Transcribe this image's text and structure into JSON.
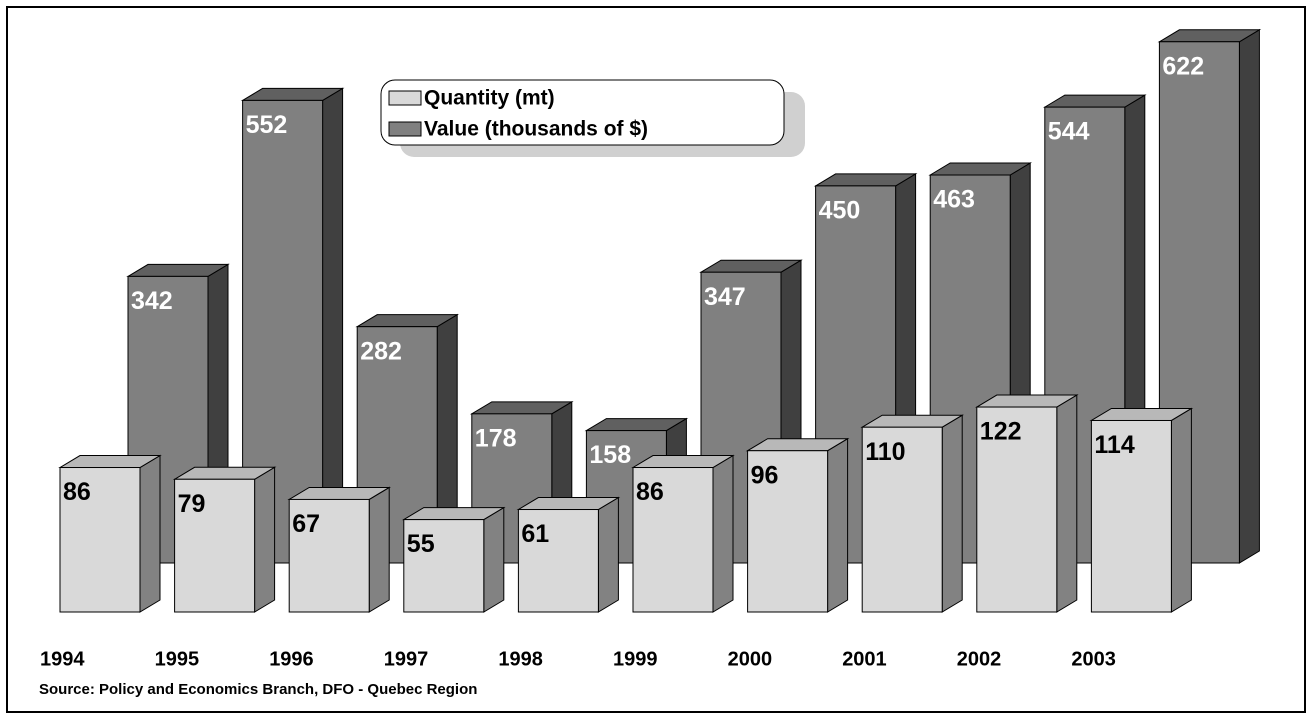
{
  "chart_data": {
    "type": "bar3d",
    "categories": [
      "1994",
      "1995",
      "1996",
      "1997",
      "1998",
      "1999",
      "2000",
      "2001",
      "2002",
      "2003"
    ],
    "series": [
      {
        "name": "Quantity (mt)",
        "color": "#d9d9d9",
        "values": [
          86,
          79,
          67,
          55,
          61,
          86,
          96,
          110,
          122,
          114
        ]
      },
      {
        "name": "Value (thousands of $)",
        "color": "#808080",
        "values": [
          342,
          552,
          282,
          178,
          158,
          347,
          450,
          463,
          544,
          622
        ]
      }
    ],
    "source": "Source:   Policy and Economics Branch, DFO - Quebec Region"
  }
}
